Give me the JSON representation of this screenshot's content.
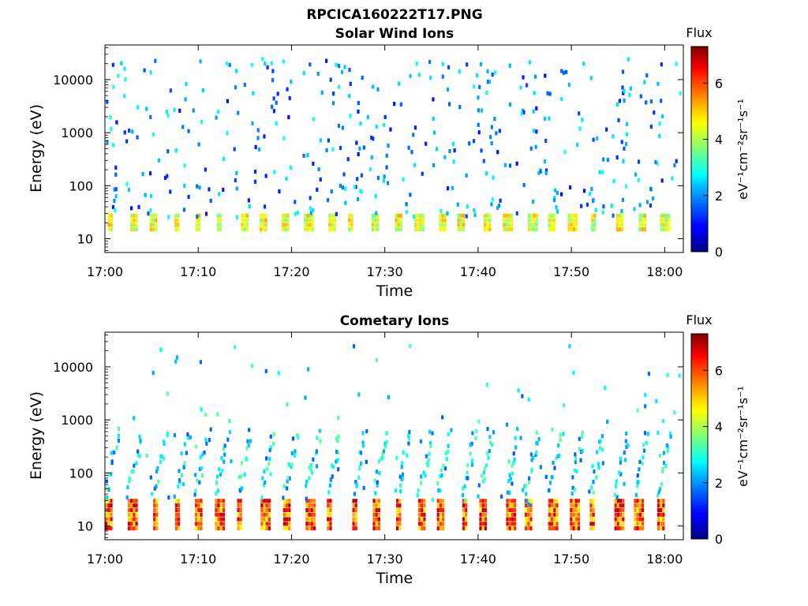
{
  "figure": {
    "title": "RPCICA160222T17.PNG"
  },
  "chart_data": [
    {
      "type": "heatmap",
      "title": "Solar Wind Ions",
      "xlabel": "Time",
      "ylabel": "Energy (eV)",
      "x_ticks": [
        "17:00",
        "17:10",
        "17:20",
        "17:30",
        "17:40",
        "17:50",
        "18:00"
      ],
      "y_ticks": [
        "10",
        "100",
        "1000",
        "10000"
      ],
      "y_scale": "log",
      "ylim": [
        5.5,
        45000
      ],
      "xlim_minutes": [
        0,
        62
      ],
      "colorbar": {
        "label": "Flux",
        "unit": "eV⁻¹cm⁻²sr⁻¹s⁻¹",
        "ticks": [
          "0",
          "2",
          "4",
          "6"
        ],
        "range": [
          0,
          7.3
        ]
      },
      "colormap": "jet",
      "bands": [
        {
          "energy_range_eV": [
            15,
            32
          ],
          "flux_range": [
            3.5,
            5.2
          ],
          "description_level": "sparse pulses"
        }
      ],
      "scatter_flux_range": [
        1.0,
        3.0
      ],
      "grid": false
    },
    {
      "type": "heatmap",
      "title": "Cometary Ions",
      "xlabel": "Time",
      "ylabel": "Energy (eV)",
      "x_ticks": [
        "17:00",
        "17:10",
        "17:20",
        "17:30",
        "17:40",
        "17:50",
        "18:00"
      ],
      "y_ticks": [
        "10",
        "100",
        "1000",
        "10000"
      ],
      "y_scale": "log",
      "ylim": [
        5.5,
        45000
      ],
      "xlim_minutes": [
        0,
        62
      ],
      "colorbar": {
        "label": "Flux",
        "unit": "eV⁻¹cm⁻²sr⁻¹s⁻¹",
        "ticks": [
          "0",
          "2",
          "4",
          "6"
        ],
        "range": [
          0,
          7.3
        ]
      },
      "colormap": "jet",
      "bands": [
        {
          "energy_range_eV": [
            9,
            34
          ],
          "flux_range": [
            4.5,
            7.0
          ],
          "description_level": "periodic pulses"
        }
      ],
      "scatter_flux_range": [
        1.5,
        3.5
      ],
      "grid": false
    }
  ]
}
